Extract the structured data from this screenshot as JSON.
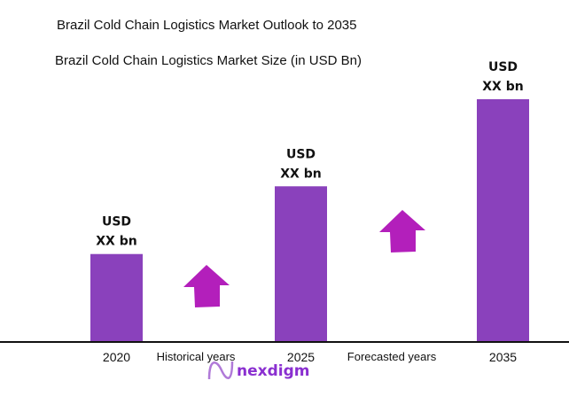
{
  "chart_data": {
    "type": "bar",
    "title": "Brazil Cold Chain Logistics Market Outlook to 2035",
    "subtitle": "Brazil Cold Chain Logistics Market Size (in USD Bn)",
    "categories": [
      "2020",
      "2025",
      "2035"
    ],
    "values": [
      36,
      64,
      100
    ],
    "data_labels": [
      [
        "USD",
        "XX bn"
      ],
      [
        "USD",
        "XX bn"
      ],
      [
        "USD",
        "XX bn"
      ]
    ],
    "annotations": [
      "Historical years",
      "Forecasted years"
    ],
    "grid": false,
    "bar_color": "#8a41bc",
    "arrow_color": "#b31fbb"
  },
  "logo": {
    "text": "nexdigm",
    "color": "#8a2fd0"
  }
}
